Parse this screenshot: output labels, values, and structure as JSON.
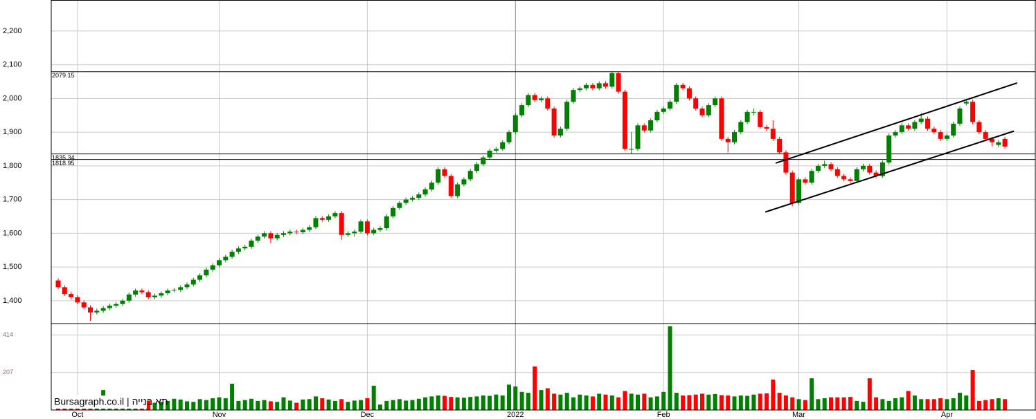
{
  "chart_data": {
    "type": "candlestick",
    "categories": [
      null,
      null,
      null,
      "Oct",
      null,
      null,
      null,
      null,
      null,
      null,
      null,
      null,
      null,
      null,
      null,
      null,
      null,
      null,
      null,
      null,
      null,
      null,
      null,
      null,
      null,
      "Nov",
      null,
      null,
      null,
      null,
      null,
      null,
      null,
      null,
      null,
      null,
      null,
      null,
      null,
      null,
      null,
      null,
      null,
      null,
      null,
      null,
      null,
      null,
      "Dec",
      null,
      null,
      null,
      null,
      null,
      null,
      null,
      null,
      null,
      null,
      null,
      null,
      null,
      null,
      null,
      null,
      null,
      null,
      null,
      null,
      null,
      null,
      "2022",
      null,
      null,
      null,
      null,
      null,
      null,
      null,
      null,
      null,
      null,
      null,
      null,
      null,
      null,
      null,
      null,
      null,
      null,
      null,
      null,
      null,
      null,
      "Feb",
      null,
      null,
      null,
      null,
      null,
      null,
      null,
      null,
      null,
      null,
      null,
      null,
      null,
      null,
      null,
      null,
      null,
      null,
      null,
      null,
      "Mar",
      null,
      null,
      null,
      null,
      null,
      null,
      null,
      null,
      null,
      null,
      null,
      null,
      null,
      null,
      null,
      null,
      null,
      null,
      null,
      null,
      null,
      null,
      "Apr",
      null,
      null,
      null,
      null,
      null,
      null,
      null,
      null,
      null
    ],
    "open": [
      1460,
      1440,
      1420,
      1410,
      1395,
      1380,
      1365,
      1370,
      1378,
      1385,
      1390,
      1400,
      1418,
      1430,
      1425,
      1410,
      1415,
      1422,
      1430,
      1432,
      1440,
      1448,
      1462,
      1475,
      1492,
      1505,
      1520,
      1530,
      1545,
      1555,
      1560,
      1578,
      1590,
      1600,
      1585,
      1595,
      1600,
      1605,
      1603,
      1610,
      1618,
      1645,
      1640,
      1650,
      1660,
      1595,
      1600,
      1605,
      1635,
      1600,
      1610,
      1615,
      1650,
      1675,
      1690,
      1700,
      1705,
      1715,
      1730,
      1750,
      1790,
      1770,
      1710,
      1745,
      1760,
      1785,
      1805,
      1825,
      1845,
      1850,
      1870,
      1900,
      1950,
      1980,
      2010,
      1995,
      2000,
      1970,
      1890,
      1910,
      1990,
      2025,
      2030,
      2040,
      2030,
      2045,
      2035,
      2075,
      2020,
      1850,
      1850,
      1920,
      1905,
      1935,
      1960,
      1970,
      1990,
      2040,
      2030,
      2000,
      1970,
      1950,
      1980,
      2000,
      1880,
      1870,
      1900,
      1930,
      1960,
      1960,
      1915,
      1910,
      1880,
      1840,
      1780,
      1690,
      1760,
      1750,
      1785,
      1800,
      1805,
      1790,
      1770,
      1760,
      1755,
      1790,
      1800,
      1780,
      1770,
      1810,
      1890,
      1900,
      1920,
      1910,
      1930,
      1940,
      1910,
      1900,
      1880,
      1890,
      1925,
      1985,
      1990,
      1930,
      1900,
      1880,
      1862,
      1880
    ],
    "high": [
      1466,
      1446,
      1426,
      1416,
      1401,
      1386,
      1376,
      1384,
      1391,
      1396,
      1406,
      1424,
      1436,
      1436,
      1431,
      1421,
      1428,
      1436,
      1438,
      1446,
      1454,
      1468,
      1481,
      1498,
      1511,
      1526,
      1536,
      1551,
      1561,
      1566,
      1584,
      1596,
      1606,
      1606,
      1601,
      1606,
      1611,
      1611,
      1616,
      1624,
      1651,
      1651,
      1656,
      1666,
      1666,
      1606,
      1611,
      1641,
      1641,
      1616,
      1621,
      1656,
      1681,
      1696,
      1706,
      1711,
      1721,
      1736,
      1756,
      1796,
      1796,
      1776,
      1751,
      1766,
      1791,
      1811,
      1831,
      1851,
      1856,
      1876,
      1906,
      1956,
      1986,
      2016,
      2016,
      2006,
      2006,
      1976,
      1916,
      1996,
      2031,
      2036,
      2046,
      2046,
      2051,
      2051,
      2081,
      2081,
      2026,
      1900,
      1926,
      1926,
      1941,
      1966,
      1976,
      1996,
      2046,
      2046,
      2036,
      2006,
      1976,
      1986,
      2006,
      2006,
      1886,
      1906,
      1936,
      1966,
      1970,
      1966,
      1921,
      1935,
      1886,
      1846,
      1786,
      1766,
      1766,
      1791,
      1806,
      1815,
      1811,
      1796,
      1776,
      1766,
      1796,
      1806,
      1806,
      1786,
      1816,
      1896,
      1906,
      1926,
      1926,
      1936,
      1956,
      1946,
      1916,
      1906,
      1896,
      1931,
      1976,
      1996,
      1996,
      1936,
      1906,
      1886,
      1876,
      1886
    ],
    "low": [
      1434,
      1414,
      1404,
      1389,
      1374,
      1340,
      1359,
      1364,
      1372,
      1379,
      1384,
      1394,
      1412,
      1419,
      1404,
      1404,
      1409,
      1416,
      1424,
      1426,
      1434,
      1442,
      1456,
      1469,
      1486,
      1499,
      1514,
      1524,
      1539,
      1549,
      1554,
      1572,
      1584,
      1570,
      1579,
      1589,
      1594,
      1597,
      1597,
      1604,
      1612,
      1634,
      1634,
      1644,
      1580,
      1589,
      1590,
      1599,
      1594,
      1594,
      1604,
      1609,
      1644,
      1669,
      1684,
      1694,
      1699,
      1709,
      1724,
      1744,
      1764,
      1704,
      1704,
      1739,
      1754,
      1779,
      1799,
      1819,
      1839,
      1844,
      1864,
      1894,
      1944,
      1974,
      1989,
      1989,
      1964,
      1884,
      1884,
      1904,
      1984,
      2019,
      2024,
      2024,
      2024,
      2029,
      2029,
      2014,
      1844,
      1835,
      1844,
      1899,
      1899,
      1929,
      1954,
      1964,
      1984,
      2024,
      1994,
      1964,
      1944,
      1944,
      1974,
      1874,
      1840,
      1864,
      1894,
      1924,
      1950,
      1909,
      1904,
      1874,
      1834,
      1774,
      1680,
      1684,
      1744,
      1744,
      1779,
      1794,
      1784,
      1764,
      1754,
      1749,
      1749,
      1784,
      1774,
      1764,
      1764,
      1804,
      1884,
      1894,
      1904,
      1904,
      1924,
      1904,
      1894,
      1874,
      1874,
      1884,
      1919,
      1979,
      1924,
      1894,
      1874,
      1858,
      1856,
      1851
    ],
    "close": [
      1440,
      1420,
      1410,
      1395,
      1380,
      1365,
      1370,
      1378,
      1385,
      1390,
      1400,
      1418,
      1430,
      1425,
      1410,
      1415,
      1422,
      1430,
      1432,
      1440,
      1448,
      1462,
      1475,
      1492,
      1505,
      1520,
      1530,
      1545,
      1555,
      1560,
      1578,
      1590,
      1600,
      1585,
      1595,
      1600,
      1605,
      1603,
      1610,
      1618,
      1645,
      1640,
      1650,
      1660,
      1595,
      1600,
      1605,
      1635,
      1600,
      1610,
      1615,
      1650,
      1675,
      1690,
      1700,
      1705,
      1715,
      1730,
      1750,
      1790,
      1770,
      1710,
      1745,
      1760,
      1785,
      1805,
      1825,
      1845,
      1850,
      1870,
      1900,
      1950,
      1980,
      2010,
      1995,
      2000,
      1970,
      1890,
      1910,
      1990,
      2025,
      2030,
      2040,
      2030,
      2045,
      2035,
      2075,
      2020,
      1850,
      1850,
      1920,
      1905,
      1935,
      1960,
      1970,
      1990,
      2040,
      2030,
      2000,
      1970,
      1950,
      1980,
      2000,
      1880,
      1870,
      1900,
      1930,
      1960,
      1960,
      1915,
      1910,
      1880,
      1840,
      1780,
      1690,
      1760,
      1750,
      1785,
      1800,
      1805,
      1790,
      1770,
      1760,
      1755,
      1790,
      1800,
      1780,
      1770,
      1810,
      1890,
      1900,
      1920,
      1910,
      1930,
      1940,
      1910,
      1900,
      1880,
      1890,
      1925,
      1970,
      1990,
      1930,
      1900,
      1880,
      1870,
      1870,
      1857
    ],
    "volume": [
      55,
      60,
      45,
      50,
      48,
      52,
      40,
      110,
      42,
      38,
      45,
      50,
      48,
      55,
      52,
      40,
      45,
      50,
      62,
      58,
      48,
      45,
      60,
      55,
      65,
      70,
      65,
      145,
      50,
      55,
      62,
      50,
      55,
      48,
      45,
      70,
      52,
      40,
      58,
      60,
      75,
      65,
      58,
      50,
      60,
      45,
      52,
      55,
      65,
      134,
      30,
      50,
      55,
      60,
      52,
      55,
      62,
      70,
      75,
      80,
      78,
      72,
      70,
      68,
      72,
      75,
      80,
      78,
      85,
      80,
      140,
      130,
      100,
      95,
      240,
      110,
      120,
      90,
      85,
      95,
      70,
      85,
      80,
      75,
      90,
      85,
      80,
      70,
      105,
      90,
      85,
      90,
      70,
      75,
      100,
      462,
      95,
      80,
      82,
      85,
      90,
      85,
      88,
      82,
      80,
      75,
      80,
      78,
      85,
      90,
      92,
      168,
      95,
      80,
      70,
      60,
      55,
      175,
      60,
      65,
      70,
      70,
      70,
      72,
      50,
      45,
      175,
      70,
      60,
      50,
      65,
      70,
      105,
      80,
      60,
      60,
      60,
      65,
      60,
      65,
      95,
      80,
      221,
      50,
      55,
      60,
      65,
      60
    ],
    "up_color": "#008000",
    "down_color": "#ff0000",
    "ylim": [
      1332,
      2292
    ],
    "yticks": [
      {
        "value": 1400,
        "label": "1,400"
      },
      {
        "value": 1500,
        "label": "1,500"
      },
      {
        "value": 1600,
        "label": "1,600"
      },
      {
        "value": 1700,
        "label": "1,700"
      },
      {
        "value": 1800,
        "label": "1,800"
      },
      {
        "value": 1900,
        "label": "1,900"
      },
      {
        "value": 2000,
        "label": "2,000"
      },
      {
        "value": 2100,
        "label": "2,100"
      },
      {
        "value": 2200,
        "label": "2,200"
      }
    ],
    "volume_ylim": [
      0,
      477
    ],
    "volume_yticks": [
      207,
      414
    ],
    "levels": [
      2079.15,
      1835.34,
      1818.95
    ],
    "trendlines": [
      {
        "x": [
          111.4,
          148.9
        ],
        "y": [
          1808,
          2046
        ]
      },
      {
        "x": [
          109.8,
          148.4
        ],
        "y": [
          1663,
          1903
        ]
      }
    ],
    "watermark": "Bursagraph.co.il | תא בנייה",
    "grid": true
  }
}
